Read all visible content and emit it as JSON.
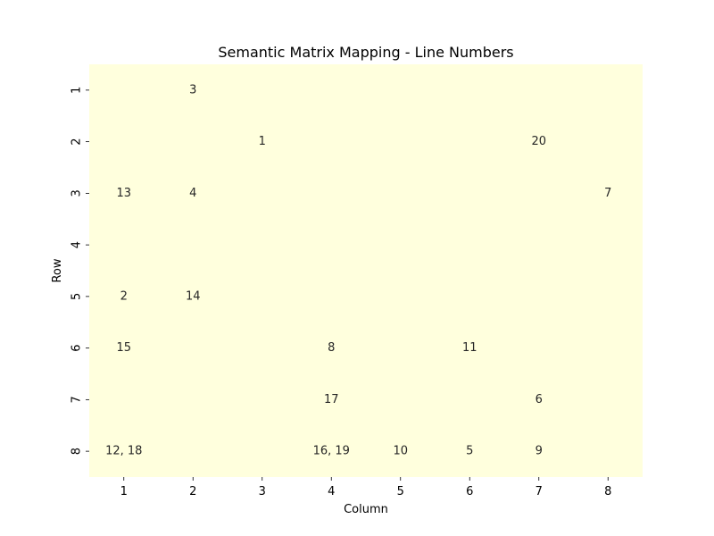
{
  "chart_data": {
    "type": "heatmap",
    "title": "Semantic Matrix Mapping - Line Numbers",
    "xlabel": "Column",
    "ylabel": "Row",
    "columns": [
      "1",
      "2",
      "3",
      "4",
      "5",
      "6",
      "7",
      "8"
    ],
    "rows": [
      "1",
      "2",
      "3",
      "4",
      "5",
      "6",
      "7",
      "8"
    ],
    "cell_color": "#ffffdd",
    "colorbar": false,
    "grid": false,
    "cells": [
      {
        "row": 1,
        "col": 2,
        "label": "3"
      },
      {
        "row": 2,
        "col": 3,
        "label": "1"
      },
      {
        "row": 2,
        "col": 7,
        "label": "20"
      },
      {
        "row": 3,
        "col": 1,
        "label": "13"
      },
      {
        "row": 3,
        "col": 2,
        "label": "4"
      },
      {
        "row": 3,
        "col": 8,
        "label": "7"
      },
      {
        "row": 5,
        "col": 1,
        "label": "2"
      },
      {
        "row": 5,
        "col": 2,
        "label": "14"
      },
      {
        "row": 6,
        "col": 1,
        "label": "15"
      },
      {
        "row": 6,
        "col": 4,
        "label": "8"
      },
      {
        "row": 6,
        "col": 6,
        "label": "11"
      },
      {
        "row": 7,
        "col": 4,
        "label": "17"
      },
      {
        "row": 7,
        "col": 7,
        "label": "6"
      },
      {
        "row": 8,
        "col": 1,
        "label": "12, 18"
      },
      {
        "row": 8,
        "col": 4,
        "label": "16, 19"
      },
      {
        "row": 8,
        "col": 5,
        "label": "10"
      },
      {
        "row": 8,
        "col": 6,
        "label": "5"
      },
      {
        "row": 8,
        "col": 7,
        "label": "9"
      }
    ]
  }
}
